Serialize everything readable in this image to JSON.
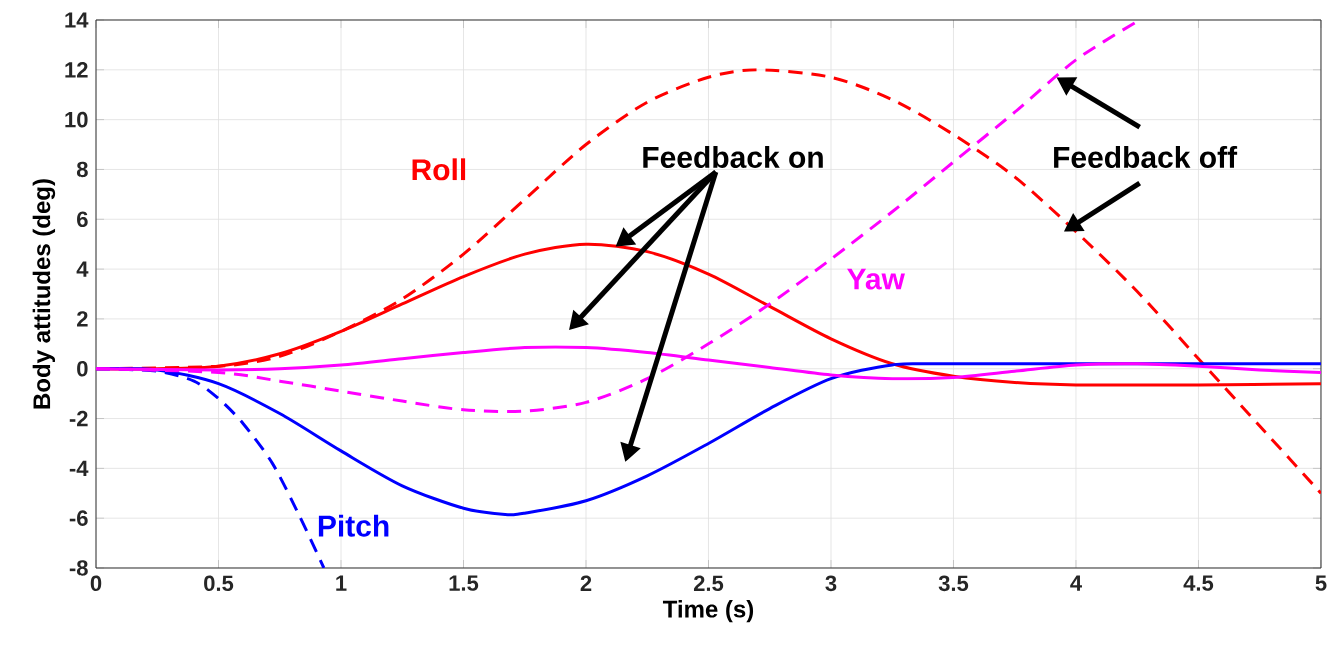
{
  "chart_data": {
    "type": "line",
    "xlabel": "Time (s)",
    "ylabel": "Body attitudes (deg)",
    "xlim": [
      0,
      5
    ],
    "ylim": [
      -8,
      14
    ],
    "xticks": [
      0,
      0.5,
      1,
      1.5,
      2,
      2.5,
      3,
      3.5,
      4,
      4.5,
      5
    ],
    "yticks": [
      -8,
      -6,
      -4,
      -2,
      0,
      2,
      4,
      6,
      8,
      10,
      12,
      14
    ],
    "grid": true,
    "series": [
      {
        "color": "#ff0000",
        "line_style": "solid",
        "x": [
          0,
          0.25,
          0.5,
          0.75,
          1,
          1.25,
          1.5,
          1.75,
          2,
          2.25,
          2.5,
          2.75,
          3,
          3.25,
          3.5,
          3.75,
          4,
          4.5,
          5
        ],
        "values": [
          0,
          0,
          0.1,
          0.6,
          1.5,
          2.6,
          3.7,
          4.6,
          5.0,
          4.7,
          3.8,
          2.5,
          1.2,
          0.2,
          -0.3,
          -0.55,
          -0.65,
          -0.65,
          -0.6
        ]
      },
      {
        "name": "Roll",
        "color": "#ff0000",
        "line_style": "dashed",
        "x": [
          0,
          0.5,
          0.75,
          1,
          1.25,
          1.5,
          1.75,
          2,
          2.25,
          2.5,
          2.7,
          3,
          3.25,
          3.5,
          3.75,
          4,
          4.25,
          4.5,
          4.75,
          5
        ],
        "values": [
          0,
          0.1,
          0.5,
          1.5,
          2.8,
          4.6,
          6.8,
          9.0,
          10.7,
          11.7,
          12.0,
          11.7,
          10.8,
          9.4,
          7.7,
          5.5,
          3.1,
          0.4,
          -2.3,
          -5.0
        ]
      },
      {
        "color": "#0000ff",
        "line_style": "solid",
        "x": [
          0,
          0.25,
          0.5,
          0.75,
          1,
          1.25,
          1.5,
          1.67,
          1.75,
          2,
          2.25,
          2.5,
          2.75,
          3,
          3.25,
          3.5,
          5
        ],
        "values": [
          0,
          -0.05,
          -0.6,
          -1.8,
          -3.3,
          -4.7,
          -5.6,
          -5.85,
          -5.8,
          -5.3,
          -4.3,
          -3.0,
          -1.6,
          -0.4,
          0.15,
          0.2,
          0.2
        ]
      },
      {
        "name": "Pitch",
        "color": "#0000ff",
        "line_style": "dashed",
        "x": [
          0,
          0.25,
          0.4,
          0.5,
          0.6,
          0.72,
          0.83,
          0.93
        ],
        "values": [
          0,
          -0.1,
          -0.5,
          -1.2,
          -2.2,
          -3.8,
          -5.9,
          -8
        ]
      },
      {
        "color": "#ff00ff",
        "line_style": "solid",
        "x": [
          0,
          0.5,
          0.75,
          1,
          1.25,
          1.5,
          1.75,
          2,
          2.25,
          2.5,
          2.75,
          3,
          3.25,
          3.5,
          3.75,
          4,
          4.25,
          4.5,
          4.75,
          5
        ],
        "values": [
          0,
          -0.05,
          0,
          0.15,
          0.4,
          0.65,
          0.85,
          0.85,
          0.65,
          0.35,
          0.05,
          -0.25,
          -0.4,
          -0.35,
          -0.1,
          0.15,
          0.2,
          0.1,
          -0.05,
          -0.15
        ]
      },
      {
        "name": "Yaw",
        "color": "#ff00ff",
        "line_style": "dashed",
        "x": [
          0,
          0.5,
          0.75,
          1,
          1.25,
          1.5,
          1.75,
          2,
          2.25,
          2.5,
          2.75,
          3,
          3.25,
          3.5,
          3.75,
          4,
          4.26
        ],
        "values": [
          0,
          -0.15,
          -0.5,
          -0.9,
          -1.3,
          -1.65,
          -1.7,
          -1.35,
          -0.4,
          1.0,
          2.6,
          4.4,
          6.3,
          8.3,
          10.3,
          12.4,
          14
        ]
      }
    ],
    "annotations": [
      {
        "text": "Feedback on",
        "x": 2.12,
        "y": 4.9
      },
      {
        "text": "Feedback off",
        "x": 3.92,
        "y": 11.7
      }
    ]
  }
}
